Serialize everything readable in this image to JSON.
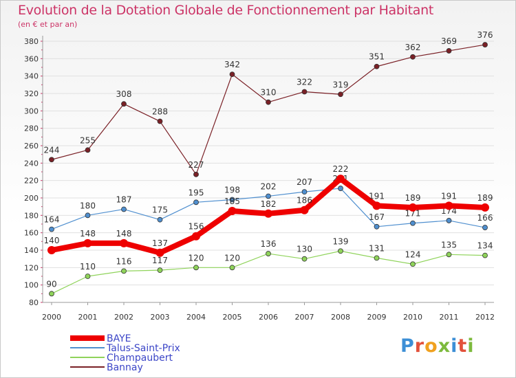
{
  "title": "Evolution de la Dotation Globale de Fonctionnement par Habitant",
  "subtitle": "(en € et par an)",
  "logo": [
    "P",
    "r",
    "o",
    "x",
    "i",
    "t",
    "i"
  ],
  "colors": {
    "title": "#cc3366",
    "axis": "#999999",
    "grid": "#e0e0e0"
  },
  "chart_data": {
    "type": "line",
    "title": "Evolution de la Dotation Globale de Fonctionnement par Habitant",
    "subtitle": "(en € et par an)",
    "xlabel": "",
    "ylabel": "",
    "ylim": [
      80,
      380
    ],
    "yticks": [
      80,
      100,
      120,
      140,
      160,
      180,
      200,
      220,
      240,
      260,
      280,
      300,
      320,
      340,
      360,
      380
    ],
    "categories": [
      "2000",
      "2001",
      "2002",
      "2003",
      "2004",
      "2005",
      "2006",
      "2007",
      "2008",
      "2009",
      "2010",
      "2011",
      "2012"
    ],
    "series": [
      {
        "name": "Bannay",
        "color": "#7a2026",
        "values": [
          244,
          255,
          308,
          288,
          227,
          342,
          310,
          322,
          319,
          351,
          362,
          369,
          376
        ]
      },
      {
        "name": "Talus-Saint-Prix",
        "color": "#4f8fcf",
        "values": [
          164,
          180,
          187,
          175,
          195,
          198,
          202,
          207,
          211,
          167,
          171,
          174,
          166
        ]
      },
      {
        "name": "Champaubert",
        "color": "#8fd35a",
        "values": [
          90,
          110,
          116,
          117,
          120,
          120,
          136,
          130,
          139,
          131,
          124,
          135,
          134
        ]
      },
      {
        "name": "BAYE",
        "color": "#ee0000",
        "values": [
          140,
          148,
          148,
          137,
          156,
          185,
          182,
          186,
          222,
          191,
          189,
          191,
          189
        ]
      }
    ],
    "legend_order": [
      "BAYE",
      "Talus-Saint-Prix",
      "Champaubert",
      "Bannay"
    ],
    "legend_position": "bottom-left"
  }
}
